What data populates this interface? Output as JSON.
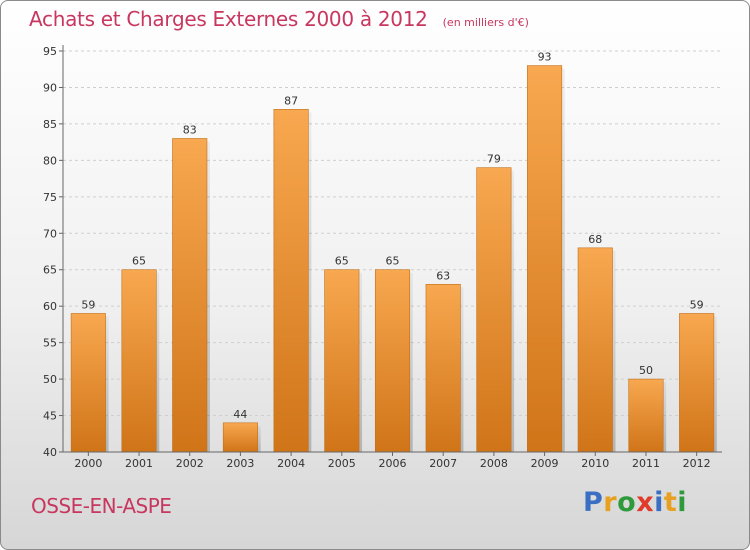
{
  "header": {
    "title": "Achats et Charges Externes 2000 à 2012",
    "subtitle": "(en milliers d'€)"
  },
  "footer": {
    "commune": "OSSE-EN-ASPE",
    "brand": "Proxiti"
  },
  "colors": {
    "accent": "#c8375f",
    "bar_top": "#f8a850",
    "bar_bottom": "#d07418",
    "brand_letters": [
      "#3a6fc4",
      "#e8a020",
      "#2f9a3c",
      "#e03a2a",
      "#3a6fc4",
      "#e8a020",
      "#2f9a3c"
    ]
  },
  "chart_data": {
    "type": "bar",
    "categories": [
      "2000",
      "2001",
      "2002",
      "2003",
      "2004",
      "2005",
      "2006",
      "2007",
      "2008",
      "2009",
      "2010",
      "2011",
      "2012"
    ],
    "values": [
      59,
      65,
      83,
      44,
      87,
      65,
      65,
      63,
      79,
      93,
      68,
      50,
      59
    ],
    "ylim": [
      40,
      95
    ],
    "yticks": [
      40,
      45,
      50,
      55,
      60,
      65,
      70,
      75,
      80,
      85,
      90,
      95
    ],
    "grid": true,
    "legend": "none"
  }
}
